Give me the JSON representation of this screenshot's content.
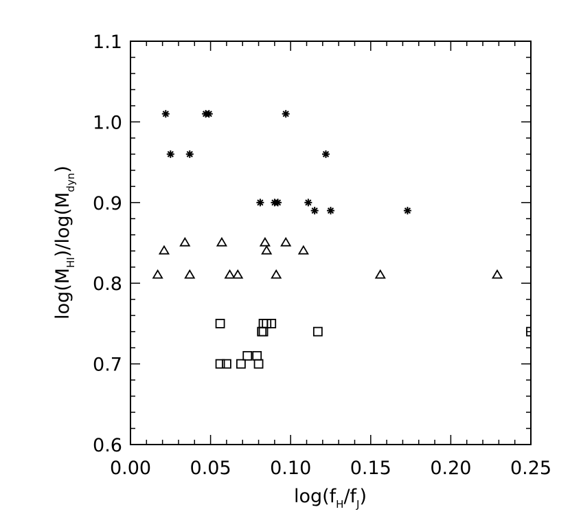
{
  "chart_data": {
    "type": "scatter",
    "title": "",
    "xlabel": {
      "base": "log(f",
      "sub1": "H",
      "mid": "/f",
      "sub2": "J",
      "end": ")"
    },
    "ylabel": {
      "base": "log(M",
      "sub1": "HI",
      "mid": ")/log(M",
      "sub2": "dyn",
      "end": ")"
    },
    "xlim": [
      0.0,
      0.25
    ],
    "ylim": [
      0.6,
      1.1
    ],
    "xticks": [
      "0.00",
      "0.05",
      "0.10",
      "0.15",
      "0.20",
      "0.25"
    ],
    "yticks": [
      "0.6",
      "0.7",
      "0.8",
      "0.9",
      "1.0",
      "1.1"
    ],
    "grid": false,
    "series": [
      {
        "marker": "asterisk",
        "points": [
          [
            0.022,
            1.01
          ],
          [
            0.047,
            1.01
          ],
          [
            0.049,
            1.01
          ],
          [
            0.097,
            1.01
          ],
          [
            0.025,
            0.96
          ],
          [
            0.037,
            0.96
          ],
          [
            0.122,
            0.96
          ],
          [
            0.081,
            0.9
          ],
          [
            0.09,
            0.9
          ],
          [
            0.092,
            0.9
          ],
          [
            0.111,
            0.9
          ],
          [
            0.115,
            0.89
          ],
          [
            0.125,
            0.89
          ],
          [
            0.173,
            0.89
          ]
        ]
      },
      {
        "marker": "triangle",
        "points": [
          [
            0.034,
            0.85
          ],
          [
            0.057,
            0.85
          ],
          [
            0.084,
            0.85
          ],
          [
            0.097,
            0.85
          ],
          [
            0.021,
            0.84
          ],
          [
            0.085,
            0.84
          ],
          [
            0.108,
            0.84
          ],
          [
            0.017,
            0.81
          ],
          [
            0.037,
            0.81
          ],
          [
            0.062,
            0.81
          ],
          [
            0.067,
            0.81
          ],
          [
            0.091,
            0.81
          ],
          [
            0.156,
            0.81
          ],
          [
            0.229,
            0.81
          ]
        ]
      },
      {
        "marker": "square",
        "points": [
          [
            0.056,
            0.75
          ],
          [
            0.083,
            0.75
          ],
          [
            0.085,
            0.75
          ],
          [
            0.088,
            0.75
          ],
          [
            0.082,
            0.74
          ],
          [
            0.083,
            0.74
          ],
          [
            0.117,
            0.74
          ],
          [
            0.25,
            0.74
          ],
          [
            0.073,
            0.71
          ],
          [
            0.079,
            0.71
          ],
          [
            0.056,
            0.7
          ],
          [
            0.06,
            0.7
          ],
          [
            0.069,
            0.7
          ],
          [
            0.08,
            0.7
          ]
        ]
      }
    ]
  }
}
